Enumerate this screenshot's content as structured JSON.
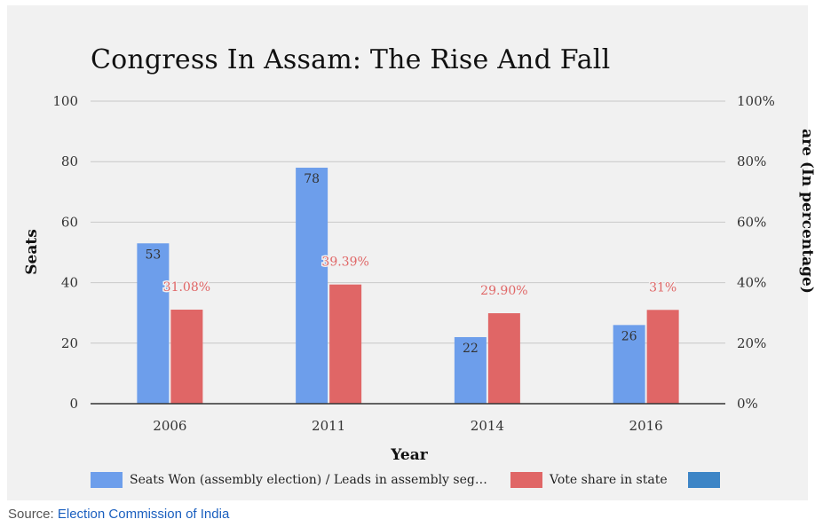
{
  "chart_data": {
    "type": "bar",
    "title": "Congress In Assam: The Rise And Fall",
    "xlabel": "Year",
    "ylabel": "Seats",
    "ylabel_right": "are (In percentage)",
    "categories": [
      "2006",
      "2011",
      "2014",
      "2016"
    ],
    "ylim": [
      0,
      100
    ],
    "yticks": [
      "0",
      "20",
      "40",
      "60",
      "80",
      "100"
    ],
    "ylim_right": [
      0,
      100
    ],
    "yticks_right": [
      "0%",
      "20%",
      "40%",
      "60%",
      "80%",
      "100%"
    ],
    "series": [
      {
        "name": "Seats Won (assembly election) / Leads in assembly seg…",
        "axis": "left",
        "color": "#6d9eeb",
        "values": [
          53,
          78,
          22,
          26
        ],
        "labels": [
          "53",
          "78",
          "22",
          "26"
        ]
      },
      {
        "name": "Vote share in state",
        "axis": "right",
        "color": "#e06666",
        "values": [
          31.08,
          39.39,
          29.9,
          31
        ],
        "labels": [
          "31.08%",
          "39.39%",
          "29.90%",
          "31%"
        ]
      }
    ],
    "legend_extra_color": "#3d85c6",
    "grid": true,
    "legend": "bottom"
  },
  "source": {
    "prefix": "Source: ",
    "link_text": "Election Commission of India"
  }
}
